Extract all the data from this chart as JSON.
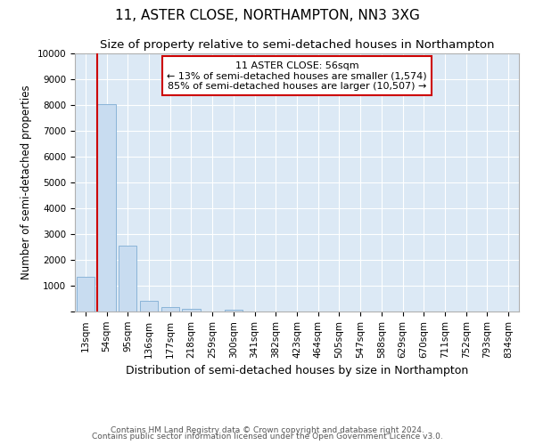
{
  "title": "11, ASTER CLOSE, NORTHAMPTON, NN3 3XG",
  "subtitle": "Size of property relative to semi-detached houses in Northampton",
  "xlabel": "Distribution of semi-detached houses by size in Northampton",
  "ylabel": "Number of semi-detached properties",
  "footer_line1": "Contains HM Land Registry data © Crown copyright and database right 2024.",
  "footer_line2": "Contains public sector information licensed under the Open Government Licence v3.0.",
  "bar_labels": [
    "13sqm",
    "54sqm",
    "95sqm",
    "136sqm",
    "177sqm",
    "218sqm",
    "259sqm",
    "300sqm",
    "341sqm",
    "382sqm",
    "423sqm",
    "464sqm",
    "505sqm",
    "547sqm",
    "588sqm",
    "629sqm",
    "670sqm",
    "711sqm",
    "752sqm",
    "793sqm",
    "834sqm"
  ],
  "bar_values": [
    1350,
    8050,
    2550,
    400,
    175,
    110,
    0,
    60,
    0,
    0,
    0,
    0,
    0,
    0,
    0,
    0,
    0,
    0,
    0,
    0,
    0
  ],
  "bar_color": "#c8dcf0",
  "bar_edge_color": "#8ab4d8",
  "subject_line_color": "#cc0000",
  "annotation_title": "11 ASTER CLOSE: 56sqm",
  "annotation_line1": "← 13% of semi-detached houses are smaller (1,574)",
  "annotation_line2": "85% of semi-detached houses are larger (10,507) →",
  "annotation_box_color": "#cc0000",
  "ylim": [
    0,
    10000
  ],
  "yticks": [
    0,
    1000,
    2000,
    3000,
    4000,
    5000,
    6000,
    7000,
    8000,
    9000,
    10000
  ],
  "background_color": "#ffffff",
  "plot_bg_color": "#dce9f5",
  "grid_color": "#ffffff",
  "title_fontsize": 11,
  "subtitle_fontsize": 9.5,
  "ylabel_fontsize": 8.5,
  "xlabel_fontsize": 9,
  "tick_fontsize": 7.5,
  "footer_fontsize": 6.5
}
